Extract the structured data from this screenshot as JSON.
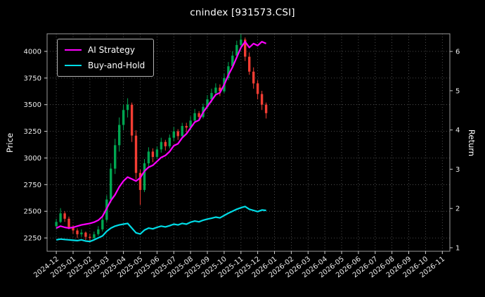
{
  "title": "cnindex [931573.CSI]",
  "legend": {
    "items": [
      {
        "label": "AI Strategy",
        "color": "#ff00ff"
      },
      {
        "label": "Buy-and-Hold",
        "color": "#00dce6"
      }
    ]
  },
  "colors": {
    "background": "#000000",
    "grid": "#5f5f5f",
    "spine": "#9a9a9a",
    "text": "#ffffff",
    "tick_text": "#ececec",
    "candle_up": "#00a651",
    "candle_down": "#f23d33",
    "ai_line": "#ff00ff",
    "bh_line": "#00dce6"
  },
  "chart_data": {
    "type": "candlestick+line",
    "title": "cnindex [931573.CSI]",
    "grid": "dotted",
    "legend_position": "upper-left",
    "x_axis": {
      "ticks": [
        "2024-12",
        "2025-01",
        "2025-02",
        "2025-03",
        "2025-04",
        "2025-05",
        "2025-06",
        "2025-07",
        "2025-08",
        "2025-09",
        "2025-10",
        "2025-11",
        "2025-12",
        "2026-01",
        "2026-02",
        "2026-03",
        "2026-04",
        "2026-05",
        "2026-06",
        "2026-07",
        "2026-08",
        "2026-09",
        "2026-10",
        "2026-11"
      ],
      "range_months": [
        -0.55,
        23.45
      ]
    },
    "price_axis": {
      "label": "Price",
      "ticks": [
        2250,
        2500,
        2750,
        3000,
        3250,
        3500,
        3750,
        4000
      ],
      "range": [
        2125,
        4165
      ]
    },
    "return_axis": {
      "label": "Return",
      "ticks": [
        1,
        2,
        3,
        4,
        5,
        6
      ],
      "range": [
        0.91,
        6.45
      ]
    },
    "candles": {
      "name": "cnindex OHLC",
      "x_start_month": 0,
      "x_step_months": 0.25,
      "open": [
        2360,
        2400,
        2480,
        2430,
        2350,
        2320,
        2285,
        2300,
        2260,
        2250,
        2285,
        2330,
        2420,
        2610,
        2900,
        3120,
        3310,
        3450,
        3500,
        3210,
        2860,
        2700,
        2950,
        3060,
        3010,
        3080,
        3150,
        3110,
        3190,
        3250,
        3205,
        3300,
        3285,
        3350,
        3420,
        3385,
        3480,
        3550,
        3610,
        3660,
        3625,
        3750,
        3860,
        3960,
        4060,
        4110,
        3950,
        3810,
        3700,
        3600,
        3500
      ],
      "high": [
        2430,
        2530,
        2500,
        2450,
        2370,
        2340,
        2330,
        2310,
        2290,
        2310,
        2360,
        2450,
        2650,
        2950,
        3180,
        3380,
        3500,
        3560,
        3520,
        3260,
        2890,
        2990,
        3100,
        3090,
        3110,
        3190,
        3170,
        3220,
        3290,
        3270,
        3330,
        3330,
        3390,
        3460,
        3440,
        3510,
        3590,
        3650,
        3700,
        3690,
        3790,
        3900,
        4000,
        4100,
        4160,
        4130,
        3990,
        3850,
        3730,
        3630,
        3520
      ],
      "low": [
        2330,
        2390,
        2400,
        2330,
        2290,
        2250,
        2260,
        2230,
        2215,
        2240,
        2270,
        2310,
        2400,
        2580,
        2850,
        3060,
        3260,
        3380,
        3150,
        2800,
        2560,
        2680,
        2920,
        2960,
        2990,
        3050,
        3070,
        3090,
        3160,
        3170,
        3190,
        3240,
        3260,
        3330,
        3350,
        3370,
        3460,
        3520,
        3580,
        3580,
        3610,
        3730,
        3840,
        3930,
        4020,
        3910,
        3780,
        3650,
        3550,
        3450,
        3370
      ],
      "close": [
        2400,
        2480,
        2430,
        2350,
        2320,
        2285,
        2300,
        2260,
        2250,
        2285,
        2330,
        2420,
        2610,
        2900,
        3120,
        3310,
        3450,
        3500,
        3210,
        2860,
        2700,
        2950,
        3060,
        3010,
        3080,
        3150,
        3110,
        3190,
        3250,
        3205,
        3300,
        3285,
        3350,
        3420,
        3385,
        3480,
        3550,
        3610,
        3660,
        3625,
        3750,
        3860,
        3960,
        4060,
        4110,
        3950,
        3810,
        3700,
        3600,
        3500,
        3420
      ]
    },
    "series": [
      {
        "name": "AI Strategy",
        "axis": "return",
        "values": [
          1.5,
          1.55,
          1.52,
          1.5,
          1.52,
          1.55,
          1.58,
          1.6,
          1.62,
          1.65,
          1.7,
          1.8,
          2.0,
          2.2,
          2.35,
          2.55,
          2.7,
          2.8,
          2.75,
          2.7,
          2.78,
          2.95,
          3.05,
          3.1,
          3.2,
          3.3,
          3.35,
          3.45,
          3.6,
          3.65,
          3.8,
          3.9,
          4.05,
          4.2,
          4.25,
          4.45,
          4.6,
          4.75,
          4.9,
          4.95,
          5.15,
          5.4,
          5.6,
          5.85,
          6.1,
          6.25,
          6.1,
          6.2,
          6.15,
          6.25,
          6.2
        ]
      },
      {
        "name": "Buy-and-Hold",
        "axis": "return",
        "values": [
          1.2,
          1.22,
          1.21,
          1.2,
          1.19,
          1.18,
          1.2,
          1.17,
          1.16,
          1.2,
          1.25,
          1.3,
          1.42,
          1.5,
          1.55,
          1.58,
          1.6,
          1.62,
          1.5,
          1.38,
          1.35,
          1.45,
          1.5,
          1.48,
          1.52,
          1.55,
          1.53,
          1.56,
          1.6,
          1.58,
          1.62,
          1.6,
          1.65,
          1.68,
          1.66,
          1.7,
          1.73,
          1.75,
          1.78,
          1.76,
          1.82,
          1.88,
          1.93,
          1.98,
          2.02,
          2.05,
          1.98,
          1.95,
          1.92,
          1.96,
          1.95
        ]
      }
    ]
  }
}
